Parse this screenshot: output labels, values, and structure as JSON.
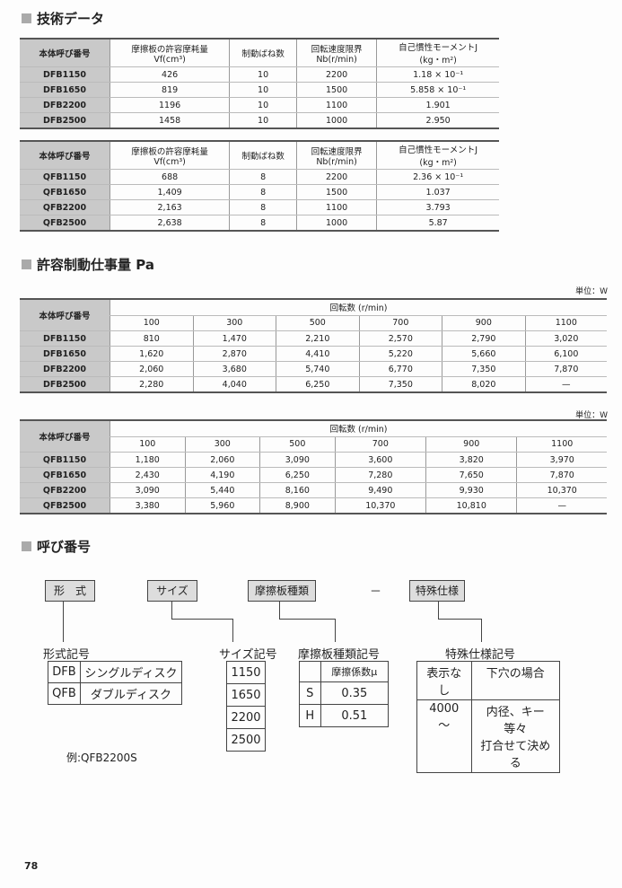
{
  "sections": {
    "tech": "技術データ",
    "work": "許容制動仕事量 Pa",
    "code": "呼び番号"
  },
  "tech_tables": [
    {
      "headers": [
        "本体呼び番号",
        "摩擦板の許容摩耗量\nVf(cm³)",
        "制動ばね数",
        "回転速度限界\nNb(r/min)",
        "自己慣性モーメントJ\n(kg・m²)"
      ],
      "rows": [
        [
          "DFB1150",
          "426",
          "10",
          "2200",
          "1.18 × 10⁻¹"
        ],
        [
          "DFB1650",
          "819",
          "10",
          "1500",
          "5.858 × 10⁻¹"
        ],
        [
          "DFB2200",
          "1196",
          "10",
          "1100",
          "1.901"
        ],
        [
          "DFB2500",
          "1458",
          "10",
          "1000",
          "2.950"
        ]
      ]
    },
    {
      "headers": [
        "本体呼び番号",
        "摩擦板の許容摩耗量\nVf(cm³)",
        "制動ばね数",
        "回転速度限界\nNb(r/min)",
        "自己慣性モーメントJ\n(kg・m²)"
      ],
      "rows": [
        [
          "QFB1150",
          "688",
          "8",
          "2200",
          "2.36 × 10⁻¹"
        ],
        [
          "QFB1650",
          "1,409",
          "8",
          "1500",
          "1.037"
        ],
        [
          "QFB2200",
          "2,163",
          "8",
          "1100",
          "3.793"
        ],
        [
          "QFB2500",
          "2,638",
          "8",
          "1000",
          "5.87"
        ]
      ]
    }
  ],
  "work_tables": [
    {
      "unit": "単位：W",
      "row_header": "本体呼び番号",
      "group_header": "回転数 (r/min)",
      "speeds": [
        "100",
        "300",
        "500",
        "700",
        "900",
        "1100"
      ],
      "rows": [
        [
          "DFB1150",
          "810",
          "1,470",
          "2,210",
          "2,570",
          "2,790",
          "3,020"
        ],
        [
          "DFB1650",
          "1,620",
          "2,870",
          "4,410",
          "5,220",
          "5,660",
          "6,100"
        ],
        [
          "DFB2200",
          "2,060",
          "3,680",
          "5,740",
          "6,770",
          "7,350",
          "7,870"
        ],
        [
          "DFB2500",
          "2,280",
          "4,040",
          "6,250",
          "7,350",
          "8,020",
          "—"
        ]
      ]
    },
    {
      "unit": "単位：W",
      "row_header": "本体呼び番号",
      "group_header": "回転数 (r/min)",
      "speeds": [
        "100",
        "300",
        "500",
        "700",
        "900",
        "1100"
      ],
      "rows": [
        [
          "QFB1150",
          "1,180",
          "2,060",
          "3,090",
          "3,600",
          "3,820",
          "3,970"
        ],
        [
          "QFB1650",
          "2,430",
          "4,190",
          "6,250",
          "7,280",
          "7,650",
          "7,870"
        ],
        [
          "QFB2200",
          "3,090",
          "5,440",
          "8,160",
          "9,490",
          "9,930",
          "10,370"
        ],
        [
          "QFB2500",
          "3,380",
          "5,960",
          "8,900",
          "10,370",
          "10,810",
          "—"
        ]
      ]
    }
  ],
  "code": {
    "boxes": [
      "形　式",
      "サイズ",
      "摩擦板種類",
      "特殊仕様"
    ],
    "dash": "－",
    "type_title": "形式記号",
    "types": [
      [
        "DFB",
        "シングルディスク"
      ],
      [
        "QFB",
        "ダブルディスク"
      ]
    ],
    "size_title": "サイズ記号",
    "sizes": [
      "1150",
      "1650",
      "2200",
      "2500"
    ],
    "friction_title": "摩擦板種類記号",
    "friction_header": "摩擦係数μ",
    "frictions": [
      [
        "S",
        "0.35"
      ],
      [
        "H",
        "0.51"
      ]
    ],
    "special_title": "特殊仕様記号",
    "special": [
      [
        "表示なし",
        "下穴の場合"
      ],
      [
        "4000\n～",
        "内径、キー等々\n打合せて決める"
      ]
    ],
    "example": "例:QFB2200S"
  },
  "page_number": "78"
}
